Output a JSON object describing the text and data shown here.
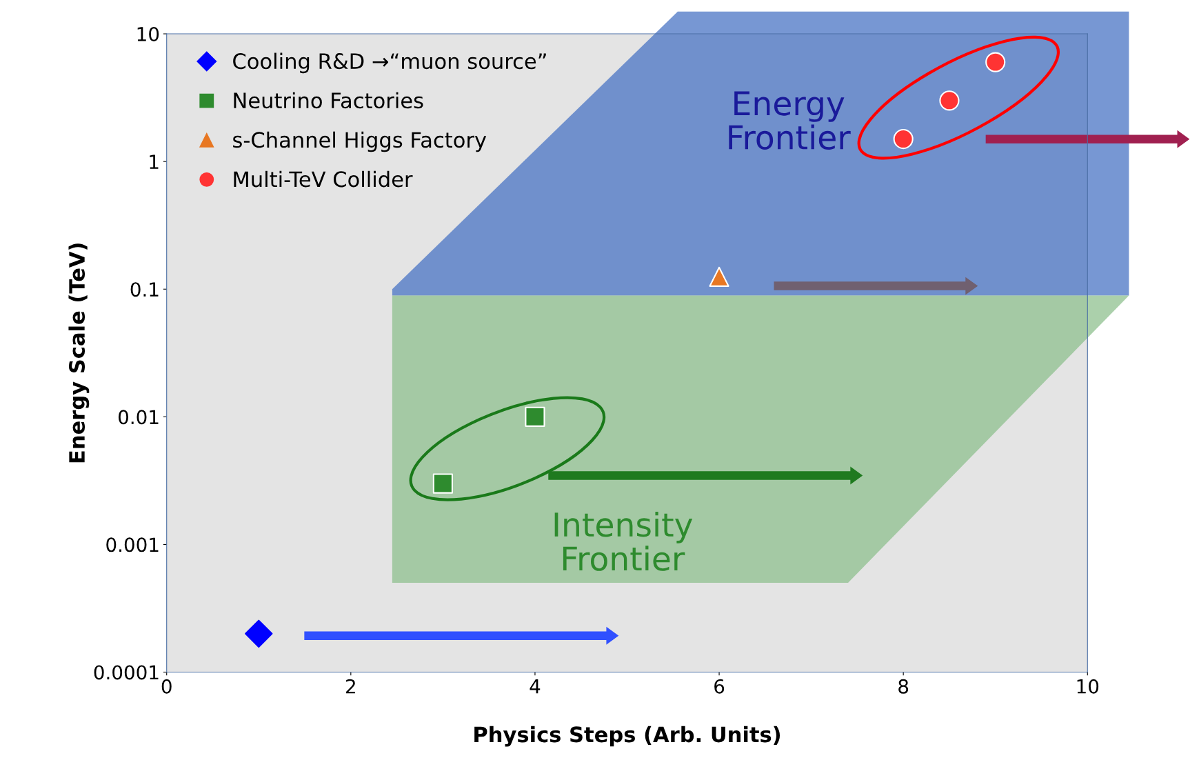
{
  "chart_data": {
    "type": "scatter",
    "xlabel": "Physics Steps (Arb. Units)",
    "ylabel": "Energy Scale (TeV)",
    "series": [
      {
        "name": "Cooling R&D →“muon source”",
        "color": "#0000ff",
        "marker": "diamond",
        "x": [
          1
        ],
        "values": [
          0.0002
        ]
      },
      {
        "name": "Neutrino Factories",
        "color": "#2e8b2e",
        "marker": "square",
        "x": [
          3,
          4
        ],
        "values": [
          0.003,
          0.01
        ]
      },
      {
        "name": "s-Channel Higgs Factory",
        "color": "#e87722",
        "marker": "triangle",
        "x": [
          6
        ],
        "values": [
          0.125
        ]
      },
      {
        "name": "Multi-TeV Collider",
        "color": "#ff3333",
        "marker": "circle",
        "x": [
          8,
          8.5,
          9
        ],
        "values": [
          1.5,
          3,
          6
        ]
      }
    ],
    "log": "y",
    "xlim": [
      0,
      10
    ],
    "ylim": [
      0.0001,
      10
    ],
    "xticks": [
      0,
      2,
      4,
      6,
      8,
      10
    ],
    "yticks": [
      0.0001,
      0.001,
      0.01,
      0.1,
      1,
      10
    ],
    "grid": false,
    "legend": "top left",
    "annotations": [
      "Energy Frontier",
      "Intensity Frontier"
    ]
  }
}
